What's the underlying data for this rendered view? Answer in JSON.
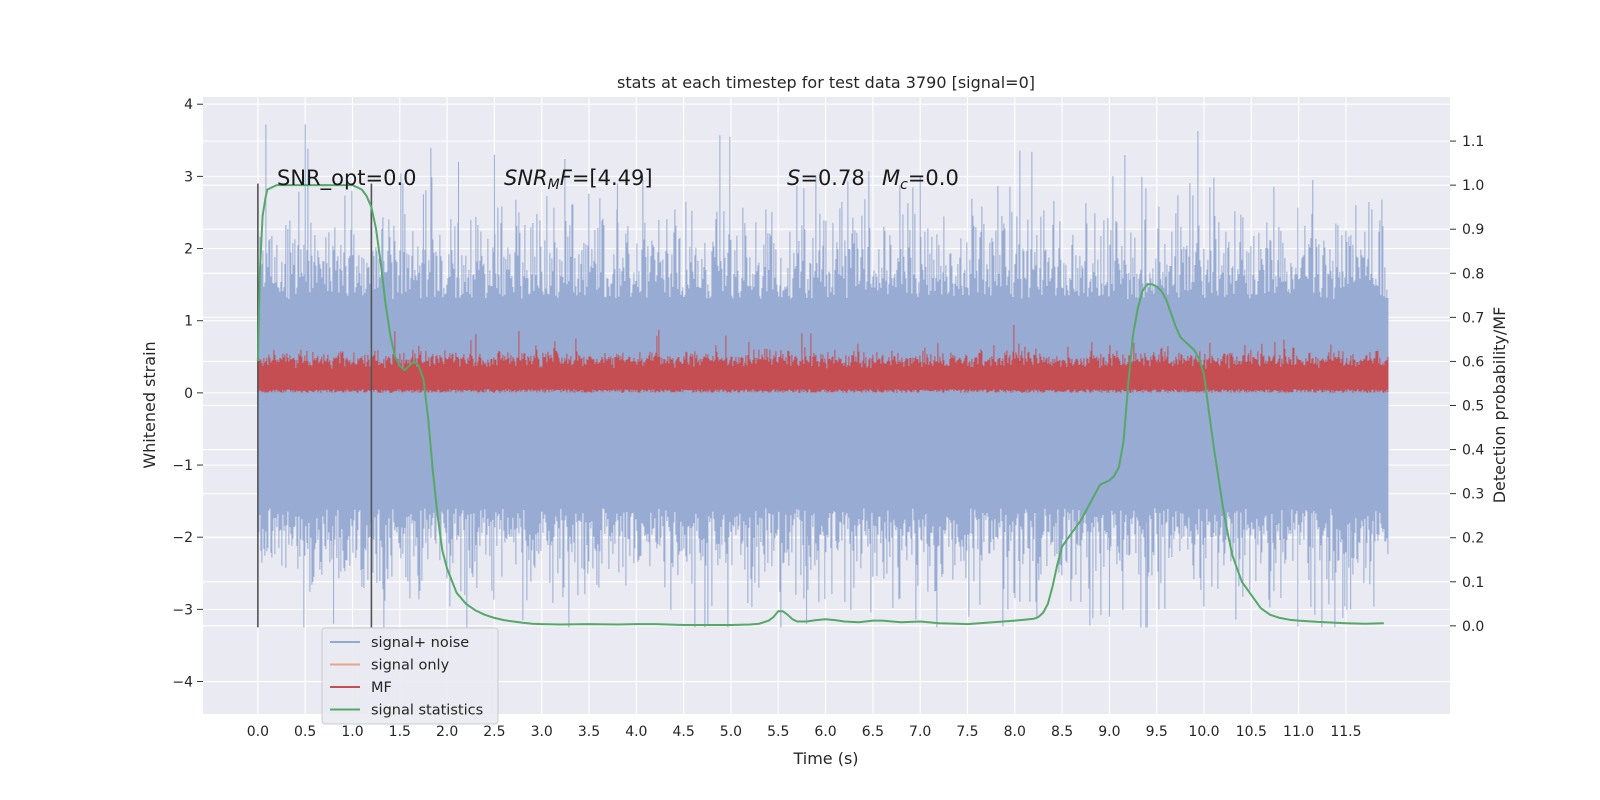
{
  "chart_data": {
    "type": "line",
    "title": "stats at each timestep for test data 3790 [signal=0]",
    "xlabel": "Time (s)",
    "ylabel_left": "Whitened strain",
    "ylabel_right": "Detection probability/MF",
    "xlim": [
      -0.58,
      12.6
    ],
    "ylim_left": [
      -4.45,
      4.1
    ],
    "ylim_right": [
      -0.2,
      1.2
    ],
    "x_ticks": [
      0.0,
      0.5,
      1.0,
      1.5,
      2.0,
      2.5,
      3.0,
      3.5,
      4.0,
      4.5,
      5.0,
      5.5,
      6.0,
      6.5,
      7.0,
      7.5,
      8.0,
      8.5,
      9.0,
      9.5,
      10.0,
      10.5,
      11.0,
      11.5
    ],
    "x_tick_labels": [
      "0.0",
      "0.5",
      "1.0",
      "1.5",
      "2.0",
      "2.5",
      "3.0",
      "3.5",
      "4.0",
      "4.5",
      "5.0",
      "5.5",
      "6.0",
      "6.5",
      "7.0",
      "7.5",
      "8.0",
      "8.5",
      "9.0",
      "9.5",
      "10.0",
      "10.5",
      "11.0",
      "11.5"
    ],
    "y_left_ticks": [
      4,
      3,
      2,
      1,
      0,
      -1,
      -2,
      -3,
      -4
    ],
    "y_left_tick_labels": [
      "4",
      "3",
      "2",
      "1",
      "0",
      "−1",
      "−2",
      "−3",
      "−4"
    ],
    "y_right_ticks": [
      1.1,
      1.0,
      0.9,
      0.8,
      0.7,
      0.6,
      0.5,
      0.4,
      0.3,
      0.2,
      0.1,
      0.0
    ],
    "y_right_tick_labels": [
      "1.1",
      "1.0",
      "0.9",
      "0.8",
      "0.7",
      "0.6",
      "0.5",
      "0.4",
      "0.3",
      "0.2",
      "0.1",
      "0.0"
    ],
    "annotations": {
      "snr_opt": "SNR_opt=0.0",
      "snr_mf_label": "SNR",
      "snr_mf_sub": "M",
      "snr_mf_suffix": "F",
      "snr_mf_value": "=[4.49]",
      "s_label": "S",
      "s_value": "=0.78",
      "mc_label": "M",
      "mc_sub": "c",
      "mc_value": "=0.0"
    },
    "vertical_lines_x": [
      0.0,
      1.2
    ],
    "vertical_lines_y_range": [
      -3.25,
      2.9
    ],
    "noise_band": {
      "x_range": [
        0.0,
        11.95
      ],
      "typical_upper": 1.3,
      "typical_lower": -1.6,
      "max": 3.72,
      "min": -3.25
    },
    "mf_band": {
      "x_range": [
        0.0,
        11.95
      ],
      "typical_upper": 0.48,
      "typical_lower": 0.0,
      "max": 0.98
    },
    "series": [
      {
        "name": "signal+ noise",
        "color": "#92a8d1",
        "values_note": "dense noise band"
      },
      {
        "name": "signal only",
        "color": "#e8a48b",
        "values": []
      },
      {
        "name": "MF",
        "color": "#c44e52"
      },
      {
        "name": "signal statistics",
        "color": "#55a868",
        "x": [
          0.0,
          0.02,
          0.05,
          0.08,
          0.1,
          0.15,
          0.2,
          0.3,
          0.4,
          0.5,
          0.6,
          0.7,
          0.8,
          0.9,
          1.0,
          1.05,
          1.1,
          1.15,
          1.2,
          1.25,
          1.3,
          1.35,
          1.4,
          1.45,
          1.5,
          1.55,
          1.6,
          1.65,
          1.7,
          1.75,
          1.8,
          1.85,
          1.9,
          1.95,
          2.0,
          2.1,
          2.2,
          2.3,
          2.4,
          2.5,
          2.6,
          2.7,
          2.8,
          2.9,
          3.0,
          3.2,
          3.5,
          3.8,
          4.0,
          4.2,
          4.5,
          4.8,
          5.0,
          5.2,
          5.3,
          5.4,
          5.45,
          5.5,
          5.55,
          5.6,
          5.65,
          5.7,
          5.8,
          5.9,
          6.0,
          6.1,
          6.2,
          6.35,
          6.5,
          6.6,
          6.8,
          7.0,
          7.2,
          7.4,
          7.5,
          7.7,
          8.0,
          8.1,
          8.2,
          8.25,
          8.3,
          8.35,
          8.4,
          8.45,
          8.5,
          8.6,
          8.7,
          8.8,
          8.9,
          9.0,
          9.05,
          9.1,
          9.15,
          9.2,
          9.25,
          9.3,
          9.35,
          9.4,
          9.45,
          9.5,
          9.55,
          9.6,
          9.65,
          9.7,
          9.75,
          9.8,
          9.85,
          9.9,
          9.95,
          10.0,
          10.05,
          10.1,
          10.15,
          10.2,
          10.25,
          10.3,
          10.35,
          10.4,
          10.5,
          10.6,
          10.7,
          10.8,
          10.9,
          11.0,
          11.2,
          11.5,
          11.7,
          11.9
        ],
        "values": [
          0.6,
          0.8,
          0.93,
          0.97,
          0.99,
          0.995,
          1.0,
          1.0,
          1.0,
          1.0,
          1.0,
          1.0,
          1.0,
          1.0,
          1.0,
          0.995,
          0.99,
          0.975,
          0.95,
          0.9,
          0.82,
          0.73,
          0.66,
          0.61,
          0.59,
          0.58,
          0.59,
          0.6,
          0.59,
          0.56,
          0.47,
          0.35,
          0.25,
          0.17,
          0.13,
          0.075,
          0.05,
          0.035,
          0.025,
          0.018,
          0.013,
          0.01,
          0.007,
          0.005,
          0.004,
          0.003,
          0.004,
          0.003,
          0.004,
          0.004,
          0.002,
          0.002,
          0.002,
          0.003,
          0.005,
          0.012,
          0.02,
          0.033,
          0.033,
          0.025,
          0.015,
          0.01,
          0.01,
          0.013,
          0.015,
          0.013,
          0.01,
          0.008,
          0.012,
          0.012,
          0.008,
          0.01,
          0.006,
          0.005,
          0.004,
          0.007,
          0.012,
          0.014,
          0.016,
          0.02,
          0.03,
          0.05,
          0.09,
          0.14,
          0.18,
          0.21,
          0.24,
          0.28,
          0.32,
          0.33,
          0.34,
          0.36,
          0.42,
          0.55,
          0.66,
          0.72,
          0.76,
          0.775,
          0.775,
          0.77,
          0.76,
          0.74,
          0.71,
          0.68,
          0.655,
          0.645,
          0.635,
          0.625,
          0.605,
          0.57,
          0.49,
          0.41,
          0.34,
          0.27,
          0.21,
          0.16,
          0.13,
          0.1,
          0.07,
          0.04,
          0.025,
          0.018,
          0.014,
          0.012,
          0.009,
          0.006,
          0.005,
          0.006
        ]
      }
    ],
    "legend": {
      "position": "lower-left",
      "entries": [
        {
          "label": "signal+ noise",
          "color": "#92a8d1"
        },
        {
          "label": "signal only",
          "color": "#e8a48b"
        },
        {
          "label": "MF",
          "color": "#c44e52"
        },
        {
          "label": "signal statistics",
          "color": "#55a868"
        }
      ]
    },
    "style": {
      "plot_background": "#eaeaf2",
      "grid_color": "#ffffff",
      "grid": true
    }
  }
}
